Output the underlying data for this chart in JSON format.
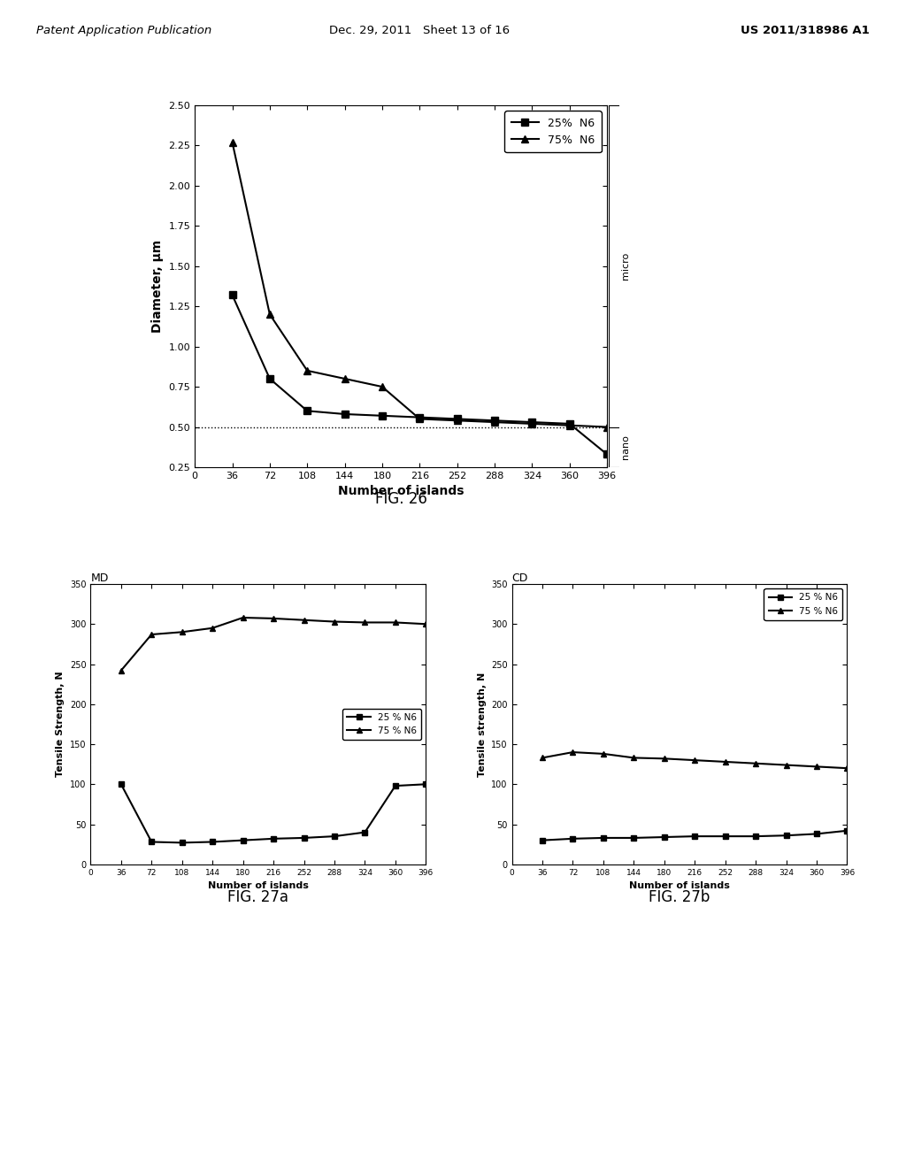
{
  "fig26": {
    "xlabel": "Number of islands",
    "ylabel": "Diameter, μm",
    "xlim": [
      0,
      396
    ],
    "ylim": [
      0.25,
      2.5
    ],
    "yticks": [
      0.25,
      0.5,
      0.75,
      1.0,
      1.25,
      1.5,
      1.75,
      2.0,
      2.25,
      2.5
    ],
    "xticks": [
      0,
      36,
      72,
      108,
      144,
      180,
      216,
      252,
      288,
      324,
      360,
      396
    ],
    "hline_y": 0.5,
    "series": [
      {
        "label": "25%  N6",
        "x": [
          36,
          72,
          108,
          144,
          180,
          216,
          252,
          288,
          324,
          360,
          396
        ],
        "y": [
          1.32,
          0.8,
          0.6,
          0.58,
          0.57,
          0.56,
          0.55,
          0.54,
          0.53,
          0.52,
          0.33
        ],
        "marker": "s"
      },
      {
        "label": "75%  N6",
        "x": [
          36,
          72,
          108,
          144,
          180,
          216,
          252,
          288,
          324,
          360,
          396
        ],
        "y": [
          2.27,
          1.2,
          0.85,
          0.8,
          0.75,
          0.55,
          0.54,
          0.53,
          0.52,
          0.51,
          0.5
        ],
        "marker": "^"
      }
    ]
  },
  "fig27a": {
    "title": "MD",
    "xlabel": "Number of islands",
    "ylabel": "Tensile Strength, N",
    "xlim": [
      0,
      396
    ],
    "ylim": [
      0,
      350
    ],
    "yticks": [
      0,
      50,
      100,
      150,
      200,
      250,
      300,
      350
    ],
    "xticks": [
      0,
      36,
      72,
      108,
      144,
      180,
      216,
      252,
      288,
      324,
      360,
      396
    ],
    "series": [
      {
        "label": "25 % N6",
        "x": [
          36,
          72,
          108,
          144,
          180,
          216,
          252,
          288,
          324,
          360,
          396
        ],
        "y": [
          100,
          28,
          27,
          28,
          30,
          32,
          33,
          35,
          40,
          98,
          100
        ],
        "marker": "s"
      },
      {
        "label": "75 % N6",
        "x": [
          36,
          72,
          108,
          144,
          180,
          216,
          252,
          288,
          324,
          360,
          396
        ],
        "y": [
          242,
          287,
          290,
          295,
          308,
          307,
          305,
          303,
          302,
          302,
          300
        ],
        "marker": "^"
      }
    ]
  },
  "fig27b": {
    "title": "CD",
    "xlabel": "Number of islands",
    "ylabel": "Tensile strength, N",
    "xlim": [
      0,
      396
    ],
    "ylim": [
      0,
      350
    ],
    "yticks": [
      0,
      50,
      100,
      150,
      200,
      250,
      300,
      350
    ],
    "xticks": [
      0,
      36,
      72,
      108,
      144,
      180,
      216,
      252,
      288,
      324,
      360,
      396
    ],
    "series": [
      {
        "label": "25 % N6",
        "x": [
          36,
          72,
          108,
          144,
          180,
          216,
          252,
          288,
          324,
          360,
          396
        ],
        "y": [
          30,
          32,
          33,
          33,
          34,
          35,
          35,
          35,
          36,
          38,
          42
        ],
        "marker": "s"
      },
      {
        "label": "75 % N6",
        "x": [
          36,
          72,
          108,
          144,
          180,
          216,
          252,
          288,
          324,
          360,
          396
        ],
        "y": [
          133,
          140,
          138,
          133,
          132,
          130,
          128,
          126,
          124,
          122,
          120
        ],
        "marker": "^"
      }
    ]
  },
  "header": {
    "left": "Patent Application Publication",
    "center": "Dec. 29, 2011   Sheet 13 of 16",
    "right": "US 2011/318986 A1"
  },
  "fig_captions": {
    "fig26": "FIG. 26",
    "fig27a": "FIG. 27a",
    "fig27b": "FIG. 27b"
  },
  "bg_color": "#ffffff"
}
